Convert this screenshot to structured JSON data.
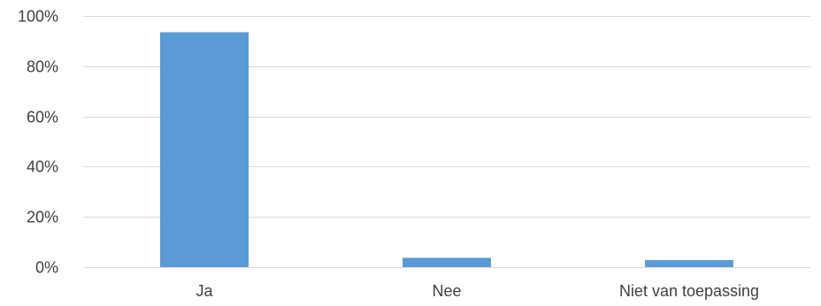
{
  "chart_data": {
    "type": "bar",
    "title": "",
    "xlabel": "",
    "ylabel": "",
    "categories": [
      "Ja",
      "Nee",
      "Niet van toepassing"
    ],
    "values": [
      93.5,
      3.7,
      2.8
    ],
    "ylim": [
      0,
      100
    ],
    "yticks": [
      0,
      20,
      40,
      60,
      80,
      100
    ],
    "ytick_labels": [
      "0%",
      "20%",
      "40%",
      "60%",
      "80%",
      "100%"
    ],
    "grid": true,
    "legend": "none",
    "colors": {
      "bar": "#5B9BD5",
      "grid": "#D9D9D9",
      "text": "#404040"
    }
  }
}
